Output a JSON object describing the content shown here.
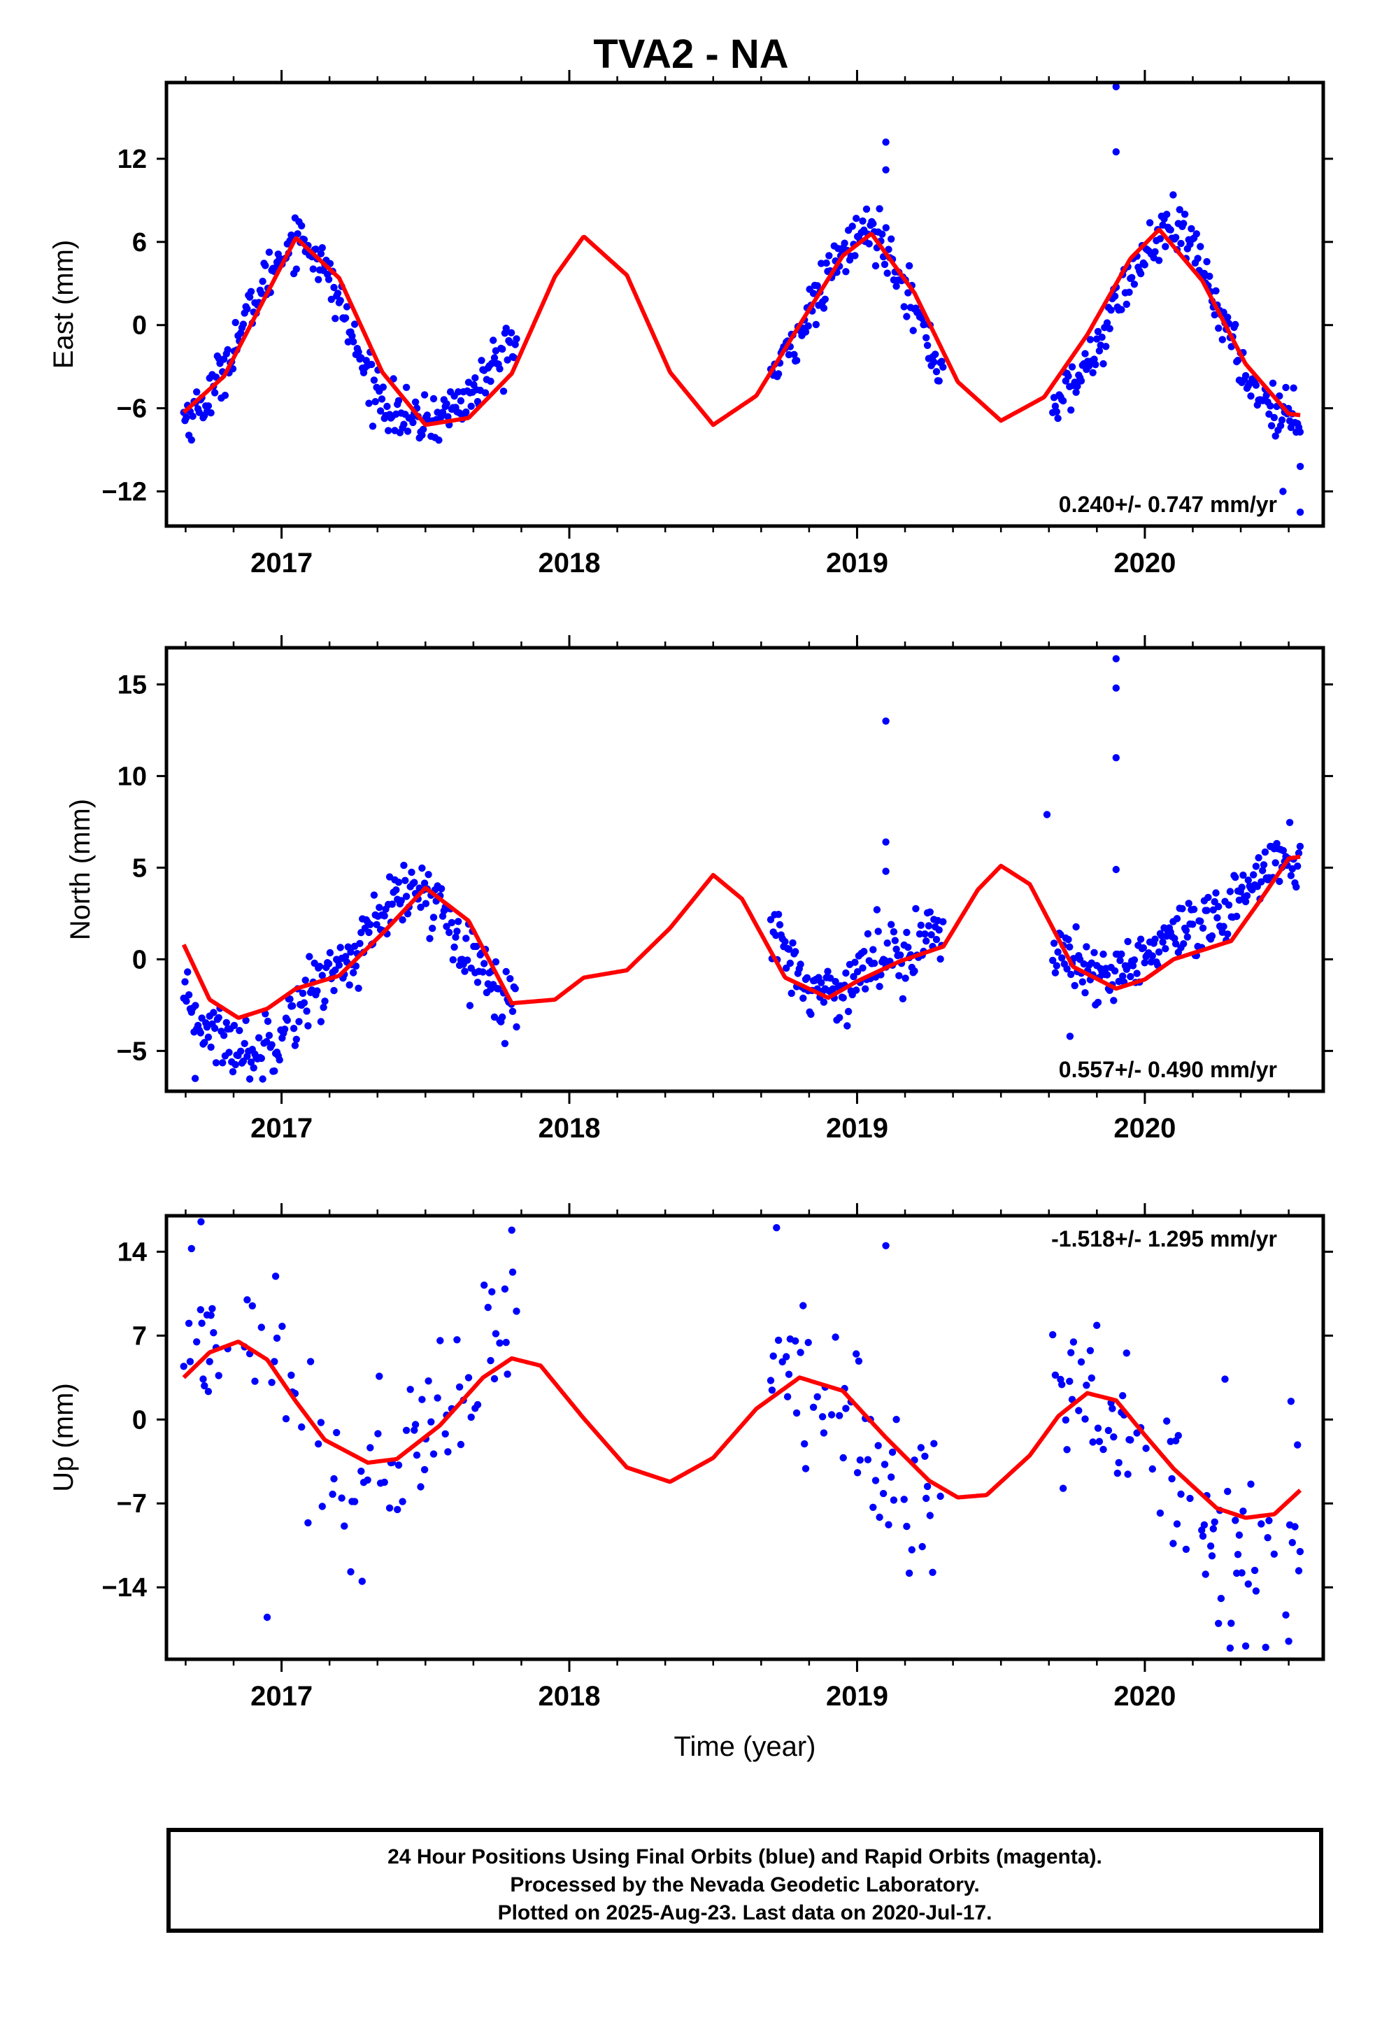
{
  "title": "TVA2 - NA",
  "footer": {
    "line1": "24 Hour Positions Using Final Orbits (blue) and Rapid Orbits (magenta).",
    "line2": "Processed by the Nevada Geodetic Laboratory.",
    "line3": "Plotted on 2025-Aug-23. Last data on 2020-Jul-17."
  },
  "colors": {
    "observed": "#0000ff",
    "model": "#ff0000",
    "axes": "#000000"
  },
  "chart_data": [
    {
      "type": "scatter",
      "ylabel": "East (mm)",
      "xlabel": "",
      "xlim": [
        2016.6,
        2020.62
      ],
      "ylim": [
        -14.5,
        17.5
      ],
      "xticks": [
        2017,
        2018,
        2019,
        2020
      ],
      "yticks": [
        -12,
        -6,
        0,
        6,
        12
      ],
      "grid": false,
      "rate_annotation": "0.240+/- 0.747 mm/yr",
      "annotation_position": "bottom-right",
      "series": [
        {
          "kind": "points",
          "data_ranges": [
            [
              2016.66,
              2017.82
            ],
            [
              2018.7,
              2019.3
            ],
            [
              2019.68,
              2020.54
            ]
          ],
          "x": [
            2016.68,
            2016.75,
            2016.82,
            2016.9,
            2016.98,
            2017.05,
            2017.12,
            2017.2,
            2017.28,
            2017.36,
            2017.45,
            2017.55,
            2017.65,
            2017.72,
            2017.8,
            2018.72,
            2018.8,
            2018.88,
            2018.95,
            2019.02,
            2019.08,
            2019.15,
            2019.22,
            2019.28,
            2019.7,
            2019.78,
            2019.85,
            2019.92,
            2020.0,
            2020.08,
            2020.15,
            2020.22,
            2020.3,
            2020.38,
            2020.46,
            2020.53
          ],
          "y": [
            -6.5,
            -5.2,
            -2.1,
            1.4,
            4.5,
            6.5,
            5.2,
            1.8,
            -2.9,
            -5.6,
            -7.1,
            -6.6,
            -5.2,
            -3.5,
            -1.2,
            -3.5,
            -0.3,
            2.6,
            5.1,
            6.8,
            6.5,
            3.9,
            0.1,
            -3.0,
            -5.5,
            -3.6,
            -1.0,
            2.4,
            5.1,
            6.9,
            6.2,
            3.2,
            -1.3,
            -4.6,
            -6.2,
            -6.7
          ],
          "outliers": [
            [
              2019.9,
              17.2
            ],
            [
              2019.9,
              12.5
            ],
            [
              2019.1,
              13.2
            ],
            [
              2019.1,
              11.2
            ],
            [
              2020.54,
              -13.5
            ],
            [
              2020.54,
              -10.2
            ],
            [
              2020.48,
              -12.0
            ]
          ]
        },
        {
          "kind": "model",
          "x": [
            2016.66,
            2016.8,
            2016.95,
            2017.05,
            2017.2,
            2017.35,
            2017.5,
            2017.65,
            2017.8,
            2017.95,
            2018.05,
            2018.2,
            2018.35,
            2018.5,
            2018.65,
            2018.8,
            2018.95,
            2019.05,
            2019.2,
            2019.35,
            2019.5,
            2019.65,
            2019.8,
            2019.95,
            2020.05,
            2020.2,
            2020.35,
            2020.5,
            2020.54
          ],
          "y": [
            -6.3,
            -3.7,
            2.3,
            6.3,
            3.4,
            -3.4,
            -7.2,
            -6.7,
            -3.5,
            3.5,
            6.4,
            3.6,
            -3.4,
            -7.2,
            -5.1,
            0.0,
            5.0,
            6.6,
            2.3,
            -4.1,
            -6.9,
            -5.2,
            -0.7,
            4.8,
            6.9,
            3.2,
            -2.8,
            -6.4,
            -6.5
          ]
        }
      ]
    },
    {
      "type": "scatter",
      "ylabel": "North (mm)",
      "xlabel": "",
      "xlim": [
        2016.6,
        2020.62
      ],
      "ylim": [
        -7.2,
        17.0
      ],
      "xticks": [
        2017,
        2018,
        2019,
        2020
      ],
      "yticks": [
        -5,
        0,
        5,
        10,
        15
      ],
      "grid": false,
      "rate_annotation": "0.557+/- 0.490 mm/yr",
      "annotation_position": "bottom-right",
      "series": [
        {
          "kind": "points",
          "data_ranges": [
            [
              2016.66,
              2017.82
            ],
            [
              2018.7,
              2019.3
            ],
            [
              2019.68,
              2020.54
            ]
          ],
          "x": [
            2016.68,
            2016.75,
            2016.82,
            2016.9,
            2016.98,
            2017.05,
            2017.12,
            2017.2,
            2017.28,
            2017.36,
            2017.45,
            2017.55,
            2017.65,
            2017.72,
            2017.8,
            2018.72,
            2018.8,
            2018.88,
            2018.95,
            2019.02,
            2019.08,
            2019.15,
            2019.22,
            2019.28,
            2019.7,
            2019.78,
            2019.85,
            2019.92,
            2020.0,
            2020.08,
            2020.15,
            2020.22,
            2020.3,
            2020.38,
            2020.46,
            2020.53
          ],
          "y": [
            -2.8,
            -3.8,
            -4.6,
            -5.2,
            -4.1,
            -2.7,
            -1.4,
            -0.5,
            0.8,
            2.4,
            3.8,
            3.0,
            0.8,
            -1.3,
            -2.6,
            1.6,
            -0.9,
            -1.9,
            -1.5,
            -0.6,
            0.1,
            0.6,
            0.9,
            1.4,
            1.0,
            -0.9,
            -1.4,
            -0.6,
            0.3,
            1.0,
            1.2,
            1.5,
            2.6,
            4.8,
            5.4,
            5.3
          ],
          "outliers": [
            [
              2019.1,
              13.0
            ],
            [
              2019.1,
              6.4
            ],
            [
              2019.1,
              4.8
            ],
            [
              2019.9,
              16.4
            ],
            [
              2019.9,
              14.8
            ],
            [
              2019.9,
              11.0
            ],
            [
              2019.9,
              4.9
            ],
            [
              2019.66,
              7.9
            ],
            [
              2019.74,
              -4.2
            ],
            [
              2016.7,
              -6.5
            ]
          ]
        },
        {
          "kind": "model",
          "x": [
            2016.66,
            2016.75,
            2016.85,
            2016.95,
            2017.05,
            2017.2,
            2017.35,
            2017.5,
            2017.65,
            2017.8,
            2017.95,
            2018.05,
            2018.2,
            2018.35,
            2018.5,
            2018.6,
            2018.75,
            2018.9,
            2019.0,
            2019.15,
            2019.3,
            2019.42,
            2019.5,
            2019.6,
            2019.75,
            2019.9,
            2020.0,
            2020.1,
            2020.2,
            2020.3,
            2020.4,
            2020.5,
            2020.54
          ],
          "y": [
            0.8,
            -2.2,
            -3.2,
            -2.7,
            -1.6,
            -0.9,
            1.4,
            3.9,
            2.1,
            -2.4,
            -2.2,
            -1.0,
            -0.6,
            1.7,
            4.6,
            3.3,
            -1.0,
            -2.1,
            -1.2,
            -0.1,
            0.7,
            3.8,
            5.1,
            4.1,
            -0.4,
            -1.6,
            -1.1,
            0.0,
            0.5,
            1.0,
            3.2,
            5.5,
            5.6
          ]
        }
      ]
    },
    {
      "type": "scatter",
      "ylabel": "Up (mm)",
      "xlabel": "Time (year)",
      "xlim": [
        2016.6,
        2020.62
      ],
      "ylim": [
        -20.0,
        17.0
      ],
      "xticks": [
        2017,
        2018,
        2019,
        2020
      ],
      "yticks": [
        -14,
        -7,
        0,
        7,
        14
      ],
      "grid": false,
      "rate_annotation": "-1.518+/- 1.295 mm/yr",
      "annotation_position": "top-right",
      "series": [
        {
          "kind": "points",
          "data_ranges": [
            [
              2016.66,
              2017.82
            ],
            [
              2018.7,
              2019.3
            ],
            [
              2019.68,
              2020.54
            ]
          ],
          "x": [
            2016.68,
            2016.75,
            2016.82,
            2016.9,
            2016.98,
            2017.05,
            2017.12,
            2017.2,
            2017.28,
            2017.36,
            2017.45,
            2017.55,
            2017.65,
            2017.72,
            2017.8,
            2018.72,
            2018.8,
            2018.88,
            2018.95,
            2019.02,
            2019.08,
            2019.15,
            2019.22,
            2019.28,
            2019.7,
            2019.78,
            2019.85,
            2019.92,
            2020.0,
            2020.08,
            2020.15,
            2020.22,
            2020.3,
            2020.38,
            2020.46,
            2020.53
          ],
          "y": [
            6.5,
            8.5,
            7.0,
            8.0,
            5.0,
            3.0,
            -0.5,
            -4.0,
            -4.5,
            -3.5,
            -2.0,
            -0.5,
            2.5,
            5.5,
            6.5,
            4.0,
            3.5,
            2.5,
            1.0,
            -1.5,
            -4.0,
            -7.0,
            -6.5,
            -5.0,
            2.5,
            3.5,
            1.0,
            -1.0,
            -3.0,
            -5.0,
            -6.5,
            -8.0,
            -9.5,
            -10.5,
            -12.0,
            -9.0
          ],
          "outliers": [
            [
              2016.72,
              16.5
            ],
            [
              2016.95,
              -16.5
            ],
            [
              2017.28,
              -13.5
            ],
            [
              2018.72,
              16.0
            ],
            [
              2019.1,
              14.5
            ],
            [
              2020.3,
              -17.0
            ],
            [
              2020.42,
              -19.0
            ],
            [
              2020.5,
              -18.5
            ],
            [
              2017.8,
              15.8
            ]
          ]
        },
        {
          "kind": "model",
          "x": [
            2016.66,
            2016.75,
            2016.85,
            2016.95,
            2017.05,
            2017.15,
            2017.3,
            2017.4,
            2017.55,
            2017.7,
            2017.8,
            2017.9,
            2018.05,
            2018.2,
            2018.35,
            2018.5,
            2018.65,
            2018.8,
            2018.95,
            2019.1,
            2019.25,
            2019.35,
            2019.45,
            2019.6,
            2019.7,
            2019.8,
            2019.9,
            2020.0,
            2020.1,
            2020.25,
            2020.35,
            2020.45,
            2020.54
          ],
          "y": [
            3.5,
            5.6,
            6.5,
            5.0,
            1.5,
            -1.7,
            -3.6,
            -3.3,
            -0.5,
            3.5,
            5.1,
            4.5,
            0.1,
            -4.0,
            -5.2,
            -3.2,
            0.9,
            3.5,
            2.4,
            -1.5,
            -5.1,
            -6.5,
            -6.3,
            -3.0,
            0.3,
            2.2,
            1.6,
            -1.3,
            -4.1,
            -7.4,
            -8.2,
            -7.9,
            -5.9
          ]
        }
      ]
    }
  ]
}
